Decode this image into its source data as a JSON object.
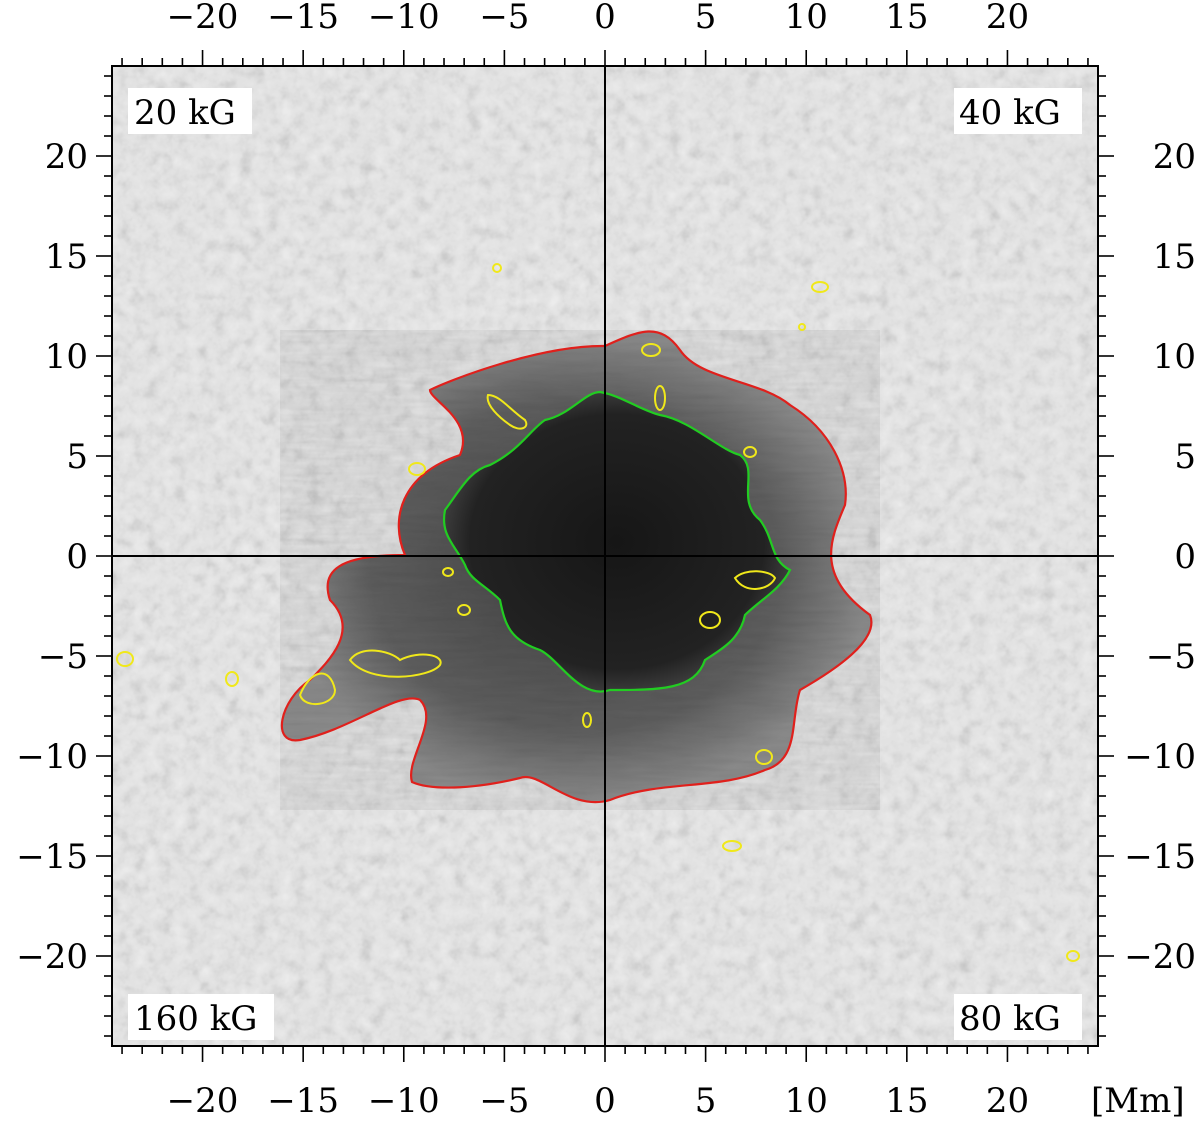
{
  "axes": {
    "unit": "[Mm]",
    "x_range": [
      -24.5,
      24.5
    ],
    "y_range": [
      -24.5,
      24.5
    ],
    "major_ticks": [
      -20,
      -15,
      -10,
      -5,
      0,
      5,
      10,
      15,
      20
    ],
    "tick_labels": [
      "−20",
      "−15",
      "−10",
      "−5",
      "0",
      "5",
      "10",
      "15",
      "20"
    ],
    "minor_step": 1,
    "crosshair": [
      0,
      0
    ]
  },
  "panels": {
    "top_left": "20 kG",
    "top_right": "40 kG",
    "bottom_left": "160 kG",
    "bottom_right": "80 kG"
  },
  "contours": {
    "outer_color": "#e0201c",
    "inner_color": "#22cc22",
    "spot_color": "#f0e81a"
  },
  "image": {
    "umbra_color": "#1e1e1e",
    "penumbra_color": "#5a5a5a",
    "granulation_color": "#b9b9b9"
  }
}
